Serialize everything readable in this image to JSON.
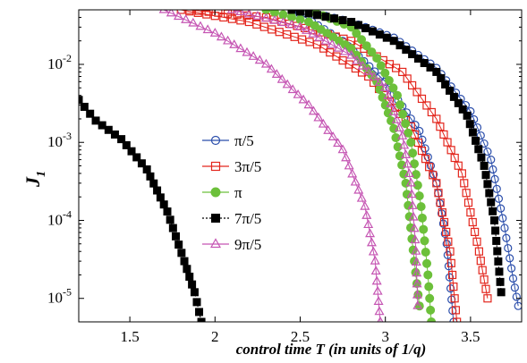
{
  "chart_data": {
    "type": "scatter",
    "title": "",
    "xlabel": "control time T (in units of 1/q)",
    "ylabel": "J",
    "ylabel_subscript": "1",
    "xlim": [
      1.2,
      3.8
    ],
    "ylim": [
      5e-06,
      0.05
    ],
    "yscale": "log",
    "grid": false,
    "legend_position": "center-left",
    "x_ticks": [
      1.5,
      2,
      2.5,
      3,
      3.5
    ],
    "x_tick_labels": [
      "1.5",
      "2",
      "2.5",
      "3",
      "3.5"
    ],
    "y_ticks": [
      1e-05,
      0.0001,
      0.001,
      0.01
    ],
    "y_tick_labels": [
      {
        "base": "10",
        "exp": "-5"
      },
      {
        "base": "10",
        "exp": "-4"
      },
      {
        "base": "10",
        "exp": "-3"
      },
      {
        "base": "10",
        "exp": "-2"
      }
    ],
    "series": [
      {
        "name": "π/5",
        "color": "#2b4eab",
        "marker": "open-circle",
        "line": "solid",
        "x": [
          2.46,
          2.75,
          3.0,
          3.2,
          3.3,
          3.36,
          3.4
        ],
        "y": [
          0.05,
          0.02,
          0.006,
          0.0014,
          0.0003,
          5e-05,
          5e-06
        ],
        "x2": [
          2.5,
          2.8,
          3.05,
          3.3,
          3.5,
          3.62,
          3.7,
          3.75,
          3.78
        ],
        "y2": [
          0.05,
          0.035,
          0.022,
          0.009,
          0.0025,
          0.0006,
          8e-05,
          1.8e-05,
          8e-06
        ]
      },
      {
        "name": "3π/5",
        "color": "#e3261d",
        "marker": "open-square",
        "line": "solid",
        "x": [
          1.8,
          2.2,
          2.6,
          2.9,
          3.15,
          3.3,
          3.38,
          3.42
        ],
        "y": [
          0.05,
          0.035,
          0.018,
          0.007,
          0.0016,
          0.0003,
          4e-05,
          5e-06
        ],
        "x2": [
          1.85,
          2.3,
          2.8,
          3.1,
          3.3,
          3.45,
          3.55,
          3.6
        ],
        "y2": [
          0.05,
          0.04,
          0.02,
          0.008,
          0.002,
          0.0004,
          4e-05,
          1e-05
        ]
      },
      {
        "name": "π",
        "color": "#6cc03a",
        "marker": "filled-circle",
        "line": "solid",
        "x": [
          2.3,
          2.55,
          2.8,
          2.95,
          3.05,
          3.12,
          3.17,
          3.2
        ],
        "y": [
          0.05,
          0.035,
          0.016,
          0.006,
          0.0015,
          0.0003,
          3e-05,
          8e-06
        ],
        "x2": [
          2.55,
          2.8,
          2.95,
          3.07,
          3.15,
          3.21,
          3.25,
          3.27
        ],
        "y2": [
          0.05,
          0.03,
          0.012,
          0.004,
          0.001,
          0.00015,
          2e-05,
          5e-06
        ]
      },
      {
        "name": "7π/5",
        "color": "#000000",
        "marker": "filled-square",
        "line": "dotted",
        "x": [
          2.45,
          2.8,
          3.05,
          3.3,
          3.48,
          3.58,
          3.64,
          3.68
        ],
        "y": [
          0.05,
          0.035,
          0.02,
          0.008,
          0.0022,
          0.0005,
          0.0001,
          1.2e-05
        ],
        "x2": [
          1.2,
          1.3,
          1.45,
          1.6,
          1.72,
          1.82,
          1.88,
          1.92
        ],
        "y2": [
          0.0035,
          0.0019,
          0.0011,
          0.00045,
          0.00013,
          3e-05,
          1.2e-05,
          5e-06
        ]
      },
      {
        "name": "9π/5",
        "color": "#c555b3",
        "marker": "open-triangle",
        "line": "solid",
        "x": [
          1.7,
          2.0,
          2.3,
          2.55,
          2.75,
          2.88,
          2.94,
          2.97
        ],
        "y": [
          0.05,
          0.025,
          0.01,
          0.003,
          0.0008,
          0.00015,
          3e-05,
          5e-06
        ],
        "x2": [
          2.1,
          2.5,
          2.8,
          3.0,
          3.1,
          3.15,
          3.18,
          3.19
        ],
        "y2": [
          0.05,
          0.03,
          0.013,
          0.005,
          0.0012,
          0.0003,
          4e-05,
          8e-06
        ]
      }
    ]
  }
}
